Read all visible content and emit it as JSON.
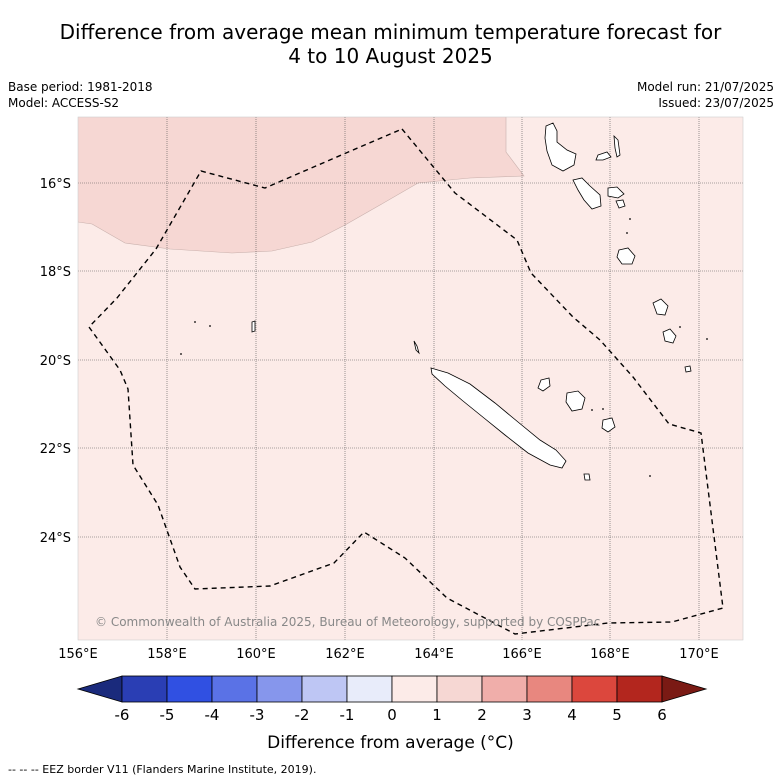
{
  "title": {
    "line1": "Difference from average mean minimum temperature forecast for",
    "line2": "4 to 10 August 2025"
  },
  "meta": {
    "base_period": "Base period: 1981-2018",
    "model": "Model: ACCESS-S2",
    "model_run": "Model run: 21/07/2025",
    "issued": "Issued: 23/07/2025"
  },
  "map": {
    "lon_ticks": [
      "156°E",
      "158°E",
      "160°E",
      "162°E",
      "164°E",
      "166°E",
      "168°E",
      "170°E"
    ],
    "lat_ticks": [
      "16°S",
      "18°S",
      "20°S",
      "22°S",
      "24°S"
    ],
    "copyright": "© Commonwealth of Australia 2025, Bureau of Meteorology, supported by COSPPac",
    "colors": {
      "anomaly_0_1": "#fcebe8",
      "anomaly_1_2": "#f6d7d3",
      "grid": "#555555"
    }
  },
  "colorbar": {
    "label": "Difference from average (°C)",
    "ticks": [
      "-6",
      "-5",
      "-4",
      "-3",
      "-2",
      "-1",
      "0",
      "1",
      "2",
      "3",
      "4",
      "5",
      "6"
    ],
    "colors": [
      "#1a2a7c",
      "#2a3eb4",
      "#3050e2",
      "#5a72e6",
      "#8696ec",
      "#bec6f4",
      "#e8ecfa",
      "#fcebe8",
      "#f6d7d3",
      "#f0aeaa",
      "#e8877f",
      "#dc473d",
      "#b3261e",
      "#7a1a14"
    ]
  },
  "footer": "--  --  -- EEZ border V11 (Flanders Marine Institute, 2019)."
}
